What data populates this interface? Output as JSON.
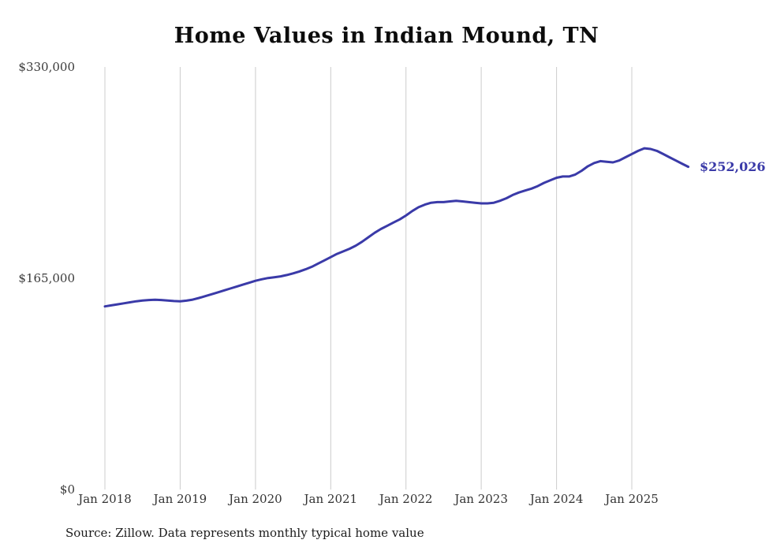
{
  "page": {
    "background": "#ffffff"
  },
  "chart_data": {
    "type": "line",
    "title": "Home Values in Indian Mound, TN",
    "source_note": "Source: Zillow. Data represents monthly typical home value",
    "series_name": "Typical home value",
    "legend": "none",
    "grid": "vertical-only",
    "line_color": "#3a3aa8",
    "grid_color": "#cccccc",
    "end_label": "$252,026",
    "end_value": 252026,
    "ylim": [
      0,
      330000
    ],
    "y_ticks": [
      {
        "value": 0,
        "label": "$0"
      },
      {
        "value": 165000,
        "label": "$165,000"
      },
      {
        "value": 330000,
        "label": "$330,000"
      }
    ],
    "x_tick_labels": [
      "Jan 2018",
      "Jan 2019",
      "Jan 2020",
      "Jan 2021",
      "Jan 2022",
      "Jan 2023",
      "Jan 2024",
      "Jan 2025"
    ],
    "x_tick_indices": [
      0,
      12,
      24,
      36,
      48,
      60,
      72,
      84
    ],
    "x": [
      "2018-01",
      "2018-02",
      "2018-03",
      "2018-04",
      "2018-05",
      "2018-06",
      "2018-07",
      "2018-08",
      "2018-09",
      "2018-10",
      "2018-11",
      "2018-12",
      "2019-01",
      "2019-02",
      "2019-03",
      "2019-04",
      "2019-05",
      "2019-06",
      "2019-07",
      "2019-08",
      "2019-09",
      "2019-10",
      "2019-11",
      "2019-12",
      "2020-01",
      "2020-02",
      "2020-03",
      "2020-04",
      "2020-05",
      "2020-06",
      "2020-07",
      "2020-08",
      "2020-09",
      "2020-10",
      "2020-11",
      "2020-12",
      "2021-01",
      "2021-02",
      "2021-03",
      "2021-04",
      "2021-05",
      "2021-06",
      "2021-07",
      "2021-08",
      "2021-09",
      "2021-10",
      "2021-11",
      "2021-12",
      "2022-01",
      "2022-02",
      "2022-03",
      "2022-04",
      "2022-05",
      "2022-06",
      "2022-07",
      "2022-08",
      "2022-09",
      "2022-10",
      "2022-11",
      "2022-12",
      "2023-01",
      "2023-02",
      "2023-03",
      "2023-04",
      "2023-05",
      "2023-06",
      "2023-07",
      "2023-08",
      "2023-09",
      "2023-10",
      "2023-11",
      "2023-12",
      "2024-01",
      "2024-02",
      "2024-03",
      "2024-04",
      "2024-05",
      "2024-06",
      "2024-07",
      "2024-08",
      "2024-09",
      "2024-10",
      "2024-11",
      "2024-12",
      "2025-01",
      "2025-02",
      "2025-03",
      "2025-04",
      "2025-05",
      "2025-06",
      "2025-07",
      "2025-08",
      "2025-09",
      "2025-10"
    ],
    "values": [
      143000,
      143800,
      144600,
      145400,
      146200,
      147000,
      147600,
      148000,
      148200,
      148000,
      147600,
      147200,
      147000,
      147500,
      148300,
      149600,
      151000,
      152500,
      154000,
      155500,
      157000,
      158500,
      160000,
      161500,
      163000,
      164200,
      165200,
      165800,
      166500,
      167500,
      168800,
      170300,
      172000,
      174000,
      176500,
      179000,
      181500,
      184000,
      186000,
      188000,
      190500,
      193500,
      197000,
      200500,
      203500,
      206000,
      208500,
      211000,
      214000,
      217500,
      220500,
      222500,
      224000,
      224500,
      224500,
      225000,
      225500,
      225000,
      224500,
      224000,
      223500,
      223500,
      224000,
      225500,
      227500,
      230000,
      232000,
      233500,
      235000,
      237000,
      239500,
      241500,
      243500,
      244500,
      244500,
      246000,
      249000,
      252500,
      255000,
      256500,
      256000,
      255500,
      257000,
      259500,
      262000,
      264500,
      266500,
      266000,
      264500,
      262000,
      259500,
      257000,
      254500,
      252026
    ]
  }
}
